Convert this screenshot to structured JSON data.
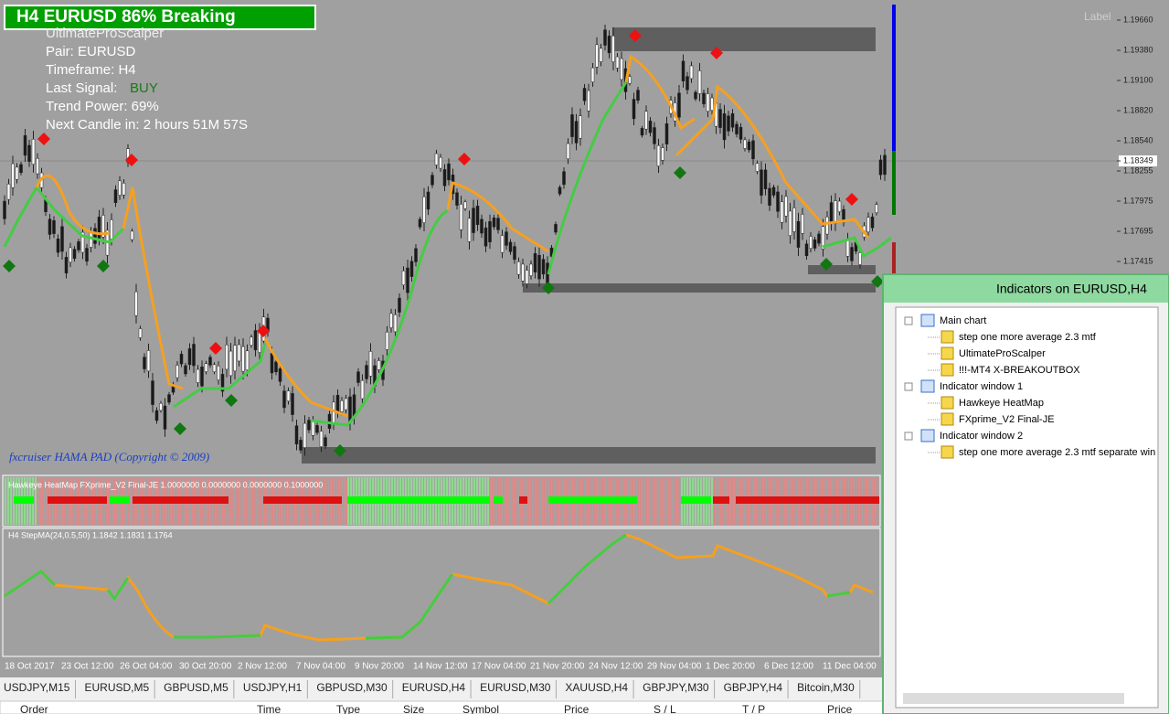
{
  "chart": {
    "banner": "H4 EURUSD  86% Breaking",
    "indicator": "UltimateProScalper",
    "pair": "Pair: EURUSD",
    "timeframe": "Timeframe: H4",
    "last_signal_label": "Last Signal:",
    "last_signal": "BUY",
    "trend_power": "Trend Power: 69%",
    "next_candle": "Next Candle in: 2 hours 51M 57S",
    "corner_label": "Label",
    "watermark": "fxcruiser HAMA PAD (Copyright © 2009)",
    "price_axis": [
      "1.19660",
      "1.19380",
      "1.19100",
      "1.18820",
      "1.18540",
      "1.18349",
      "1.18255",
      "1.17975",
      "1.17695",
      "1.17415"
    ],
    "window1_label": "Hawkeye HeatMap  FXprime_V2 Final-JE 1.0000000 0.0000000 0.0000000 0.1000000",
    "window2_label": "H4 StepMA(24,0.5,50) 1.1842 1.1831 1.1764",
    "time_axis": [
      "18 Oct 2017",
      "23 Oct 12:00",
      "26 Oct 04:00",
      "30 Oct 20:00",
      "2 Nov 12:00",
      "7 Nov 04:00",
      "9 Nov 20:00",
      "14 Nov 12:00",
      "17 Nov 04:00",
      "21 Nov 20:00",
      "24 Nov 12:00",
      "29 Nov 04:00",
      "1 Dec 20:00",
      "6 Dec 12:00",
      "11 Dec 04:00"
    ]
  },
  "tabs": [
    "USDJPY,M15",
    "EURUSD,M5",
    "GBPUSD,M5",
    "USDJPY,H1",
    "GBPUSD,M30",
    "EURUSD,H4",
    "EURUSD,M30",
    "XAUUSD,H4",
    "GBPJPY,M30",
    "GBPJPY,H4",
    "Bitcoin,M30"
  ],
  "orders_header": [
    "Order",
    "Time",
    "Type",
    "Size",
    "Symbol",
    "Price",
    "S / L",
    "T / P",
    "Price"
  ],
  "panel": {
    "title": "Indicators on EURUSD,H4",
    "groups": [
      {
        "label": "Main chart",
        "items": [
          "step one more average 2.3 mtf",
          "UltimateProScalper",
          "!!!-MT4 X-BREAKOUTBOX"
        ]
      },
      {
        "label": "Indicator window 1",
        "items": [
          "Hawkeye HeatMap",
          "FXprime_V2 Final-JE"
        ]
      },
      {
        "label": "Indicator window 2",
        "items": [
          "step one more average 2.3 mtf separate win"
        ]
      }
    ]
  }
}
